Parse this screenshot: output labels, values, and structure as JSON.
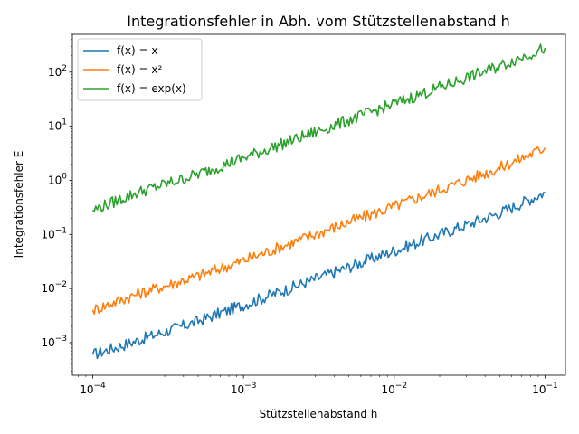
{
  "chart_data": {
    "type": "line",
    "title": "Integrationsfehler in Abh. vom Stützstellenabstand h",
    "xlabel": "Stützstellenabstand h",
    "ylabel": "Integrationsfehler E",
    "xscale": "log",
    "yscale": "log",
    "xlim": [
      0.0001,
      0.1
    ],
    "ylim": [
      0.00025,
      500
    ],
    "grid": false,
    "legend_position": "upper-left",
    "x_ticks": [
      {
        "value": 0.0001,
        "base": "10",
        "exp": "−4"
      },
      {
        "value": 0.001,
        "base": "10",
        "exp": "−3"
      },
      {
        "value": 0.01,
        "base": "10",
        "exp": "−2"
      },
      {
        "value": 0.1,
        "base": "10",
        "exp": "−1"
      }
    ],
    "y_ticks": [
      {
        "value": 0.001,
        "base": "10",
        "exp": "−3"
      },
      {
        "value": 0.01,
        "base": "10",
        "exp": "−2"
      },
      {
        "value": 0.1,
        "base": "10",
        "exp": "−1"
      },
      {
        "value": 1,
        "base": "10",
        "exp": "0"
      },
      {
        "value": 10,
        "base": "10",
        "exp": "1"
      },
      {
        "value": 100,
        "base": "10",
        "exp": "2"
      }
    ],
    "x": [
      0.0001,
      0.0002,
      0.0005,
      0.001,
      0.002,
      0.005,
      0.01,
      0.02,
      0.05,
      0.1
    ],
    "series": [
      {
        "name": "f(x) = x",
        "color": "#1f77b4",
        "values": [
          0.0006,
          0.0011,
          0.0025,
          0.005,
          0.01,
          0.025,
          0.05,
          0.1,
          0.25,
          0.6
        ]
      },
      {
        "name": "f(x) = x²",
        "color": "#ff7f0e",
        "values": [
          0.004,
          0.008,
          0.017,
          0.033,
          0.067,
          0.17,
          0.33,
          0.67,
          1.7,
          4.0
        ]
      },
      {
        "name": "f(x) = exp(x)",
        "color": "#2ca02c",
        "values": [
          0.28,
          0.6,
          1.3,
          2.6,
          5.2,
          13.0,
          26.0,
          52.0,
          130.0,
          280.0
        ]
      }
    ]
  }
}
